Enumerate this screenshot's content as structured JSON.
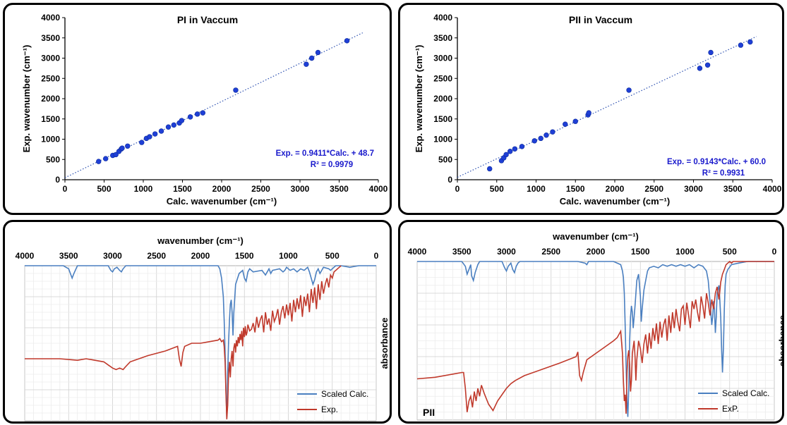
{
  "chart_data": [
    {
      "type": "scatter",
      "title": "PI in Vaccum",
      "xlabel": "Calc. wavenumber (cm⁻¹)",
      "ylabel": "Exp. wavenumber (cm⁻¹)",
      "xlim": [
        0,
        4000
      ],
      "ylim": [
        0,
        4000
      ],
      "xticks": [
        "0",
        "500",
        "1000",
        "1500",
        "2000",
        "2500",
        "3000",
        "3500",
        "4000"
      ],
      "yticks": [
        "0",
        "500",
        "1000",
        "1500",
        "2000",
        "2500",
        "3000",
        "3500",
        "4000"
      ],
      "equation": "Exp. = 0.9411*Calc. + 48.7",
      "r2": "R² = 0.9979",
      "fit": {
        "slope": 0.9411,
        "intercept": 48.7
      },
      "color": "#1f3fd6",
      "points": [
        [
          430,
          450
        ],
        [
          520,
          520
        ],
        [
          610,
          600
        ],
        [
          650,
          620
        ],
        [
          690,
          700
        ],
        [
          720,
          760
        ],
        [
          730,
          780
        ],
        [
          800,
          830
        ],
        [
          980,
          920
        ],
        [
          1040,
          1020
        ],
        [
          1080,
          1060
        ],
        [
          1150,
          1130
        ],
        [
          1230,
          1200
        ],
        [
          1320,
          1300
        ],
        [
          1390,
          1350
        ],
        [
          1460,
          1400
        ],
        [
          1490,
          1460
        ],
        [
          1600,
          1550
        ],
        [
          1690,
          1620
        ],
        [
          1760,
          1650
        ],
        [
          2180,
          2210
        ],
        [
          3080,
          2850
        ],
        [
          3150,
          3000
        ],
        [
          3230,
          3140
        ],
        [
          3600,
          3430
        ]
      ]
    },
    {
      "type": "scatter",
      "title": "PII in Vaccum",
      "xlabel": "Calc. wavenumber (cm⁻¹)",
      "ylabel": "Exp. wavenumber (cm⁻¹)",
      "xlim": [
        0,
        4000
      ],
      "ylim": [
        0,
        4000
      ],
      "xticks": [
        "0",
        "500",
        "1000",
        "1500",
        "2000",
        "2500",
        "3000",
        "3500",
        "4000"
      ],
      "yticks": [
        "0",
        "500",
        "1000",
        "1500",
        "2000",
        "2500",
        "3000",
        "3500",
        "4000"
      ],
      "equation": "Exp. = 0.9143*Calc. + 60.0",
      "r2": "R² = 0.9931",
      "fit": {
        "slope": 0.9143,
        "intercept": 60.0
      },
      "color": "#1f3fd6",
      "points": [
        [
          410,
          270
        ],
        [
          560,
          470
        ],
        [
          590,
          540
        ],
        [
          620,
          620
        ],
        [
          670,
          700
        ],
        [
          730,
          760
        ],
        [
          820,
          820
        ],
        [
          980,
          960
        ],
        [
          1060,
          1020
        ],
        [
          1130,
          1100
        ],
        [
          1210,
          1180
        ],
        [
          1370,
          1370
        ],
        [
          1500,
          1440
        ],
        [
          1660,
          1600
        ],
        [
          1670,
          1650
        ],
        [
          2180,
          2210
        ],
        [
          3080,
          2750
        ],
        [
          3180,
          2830
        ],
        [
          3220,
          3140
        ],
        [
          3600,
          3320
        ],
        [
          3720,
          3400
        ]
      ]
    },
    {
      "type": "line",
      "title": "",
      "xlabel": "wavenumber (cm⁻¹)",
      "ylabel": "absorbance",
      "xlim": [
        4000,
        0
      ],
      "xticks": [
        "4000",
        "3500",
        "3000",
        "2500",
        "2000",
        "1500",
        "1000",
        "500",
        "0"
      ],
      "series": [
        {
          "name": "Scaled Calc.",
          "color": "#4a7fc0",
          "x": [
            4000,
            3560,
            3500,
            3480,
            3460,
            3440,
            3400,
            3050,
            3020,
            3000,
            2980,
            2950,
            2920,
            2900,
            2880,
            2850,
            2200,
            1800,
            1780,
            1760,
            1740,
            1730,
            1720,
            1710,
            1700,
            1695,
            1690,
            1680,
            1670,
            1660,
            1650,
            1640,
            1630,
            1620,
            1600,
            1560,
            1520,
            1500,
            1480,
            1470,
            1460,
            1440,
            1400,
            1300,
            1260,
            1240,
            1220,
            1200,
            1180,
            1100,
            1060,
            1040,
            1020,
            980,
            940,
            900,
            860,
            820,
            780,
            760,
            740,
            720,
            700,
            680,
            660,
            640,
            620,
            600,
            540,
            520,
            500,
            480,
            460,
            400,
            300,
            200,
            100,
            0
          ],
          "y": [
            0.0,
            0.0,
            0.02,
            0.05,
            0.08,
            0.05,
            0.0,
            0.0,
            0.03,
            0.04,
            0.02,
            0.01,
            0.03,
            0.04,
            0.02,
            0.0,
            0.0,
            0.0,
            0.02,
            0.08,
            0.2,
            0.35,
            0.55,
            0.8,
            0.98,
            0.9,
            0.7,
            0.5,
            0.35,
            0.25,
            0.22,
            0.3,
            0.45,
            0.3,
            0.12,
            0.05,
            0.03,
            0.08,
            0.1,
            0.07,
            0.04,
            0.02,
            0.04,
            0.03,
            0.06,
            0.04,
            0.02,
            0.05,
            0.03,
            0.02,
            0.04,
            0.03,
            0.01,
            0.03,
            0.02,
            0.04,
            0.02,
            0.03,
            0.01,
            0.04,
            0.08,
            0.12,
            0.09,
            0.04,
            0.02,
            0.05,
            0.03,
            0.01,
            0.02,
            0.03,
            0.02,
            0.01,
            0.0,
            0.0,
            0.01,
            0.0,
            0.0,
            0.0
          ]
        },
        {
          "name": "Exp.",
          "color": "#c0392b",
          "x": [
            4000,
            3800,
            3600,
            3400,
            3300,
            3200,
            3100,
            3050,
            3000,
            2960,
            2920,
            2880,
            2850,
            2800,
            2600,
            2400,
            2260,
            2240,
            2220,
            2200,
            2180,
            2100,
            2000,
            1900,
            1800,
            1780,
            1760,
            1740,
            1730,
            1720,
            1710,
            1700,
            1690,
            1680,
            1670,
            1660,
            1650,
            1640,
            1630,
            1620,
            1610,
            1600,
            1590,
            1580,
            1570,
            1560,
            1550,
            1540,
            1530,
            1520,
            1510,
            1500,
            1490,
            1480,
            1470,
            1460,
            1440,
            1420,
            1400,
            1380,
            1360,
            1340,
            1320,
            1300,
            1280,
            1260,
            1240,
            1220,
            1200,
            1180,
            1160,
            1140,
            1120,
            1100,
            1080,
            1060,
            1040,
            1020,
            1000,
            980,
            960,
            940,
            920,
            900,
            880,
            860,
            840,
            820,
            800,
            780,
            760,
            740,
            720,
            700,
            680,
            660,
            640,
            620,
            600,
            580,
            560,
            540,
            520,
            500,
            480,
            460,
            440,
            420,
            400
          ],
          "y": [
            0.6,
            0.6,
            0.6,
            0.61,
            0.6,
            0.61,
            0.62,
            0.64,
            0.66,
            0.67,
            0.66,
            0.67,
            0.65,
            0.62,
            0.58,
            0.55,
            0.52,
            0.6,
            0.65,
            0.56,
            0.52,
            0.5,
            0.5,
            0.49,
            0.48,
            0.47,
            0.49,
            0.48,
            0.52,
            0.62,
            0.82,
            0.99,
            0.9,
            0.7,
            0.62,
            0.72,
            0.6,
            0.55,
            0.65,
            0.53,
            0.5,
            0.56,
            0.48,
            0.52,
            0.46,
            0.5,
            0.44,
            0.48,
            0.42,
            0.52,
            0.4,
            0.46,
            0.39,
            0.45,
            0.43,
            0.38,
            0.42,
            0.41,
            0.37,
            0.43,
            0.33,
            0.4,
            0.35,
            0.32,
            0.43,
            0.3,
            0.38,
            0.34,
            0.42,
            0.29,
            0.36,
            0.33,
            0.28,
            0.38,
            0.3,
            0.26,
            0.34,
            0.25,
            0.32,
            0.24,
            0.36,
            0.22,
            0.3,
            0.21,
            0.28,
            0.19,
            0.33,
            0.2,
            0.26,
            0.18,
            0.3,
            0.15,
            0.24,
            0.14,
            0.28,
            0.12,
            0.22,
            0.1,
            0.18,
            0.12,
            0.08,
            0.14,
            0.06,
            0.08,
            0.04,
            0.03,
            0.02,
            0.01,
            0.0
          ]
        }
      ],
      "legend": "bottom-right",
      "grid": true
    },
    {
      "type": "line",
      "title": "",
      "label": "PII",
      "xlim": [
        4000,
        0
      ],
      "ylabel": "absorbance",
      "xlabel": "wavenumber (cm⁻¹)",
      "xticks": [
        "4000",
        "3500",
        "3000",
        "2500",
        "2000",
        "1500",
        "1000",
        "500",
        "0"
      ],
      "series": [
        {
          "name": "Scaled Calc.",
          "color": "#4a7fc0",
          "x": [
            4000,
            3500,
            3460,
            3440,
            3420,
            3400,
            3390,
            3370,
            3350,
            3320,
            3300,
            3050,
            3020,
            3000,
            2980,
            2950,
            2930,
            2910,
            2890,
            2870,
            2850,
            2200,
            2120,
            2100,
            2080,
            1800,
            1720,
            1700,
            1690,
            1680,
            1670,
            1660,
            1650,
            1640,
            1630,
            1620,
            1610,
            1600,
            1590,
            1580,
            1560,
            1540,
            1520,
            1500,
            1490,
            1480,
            1460,
            1440,
            1420,
            1400,
            1350,
            1300,
            1250,
            1200,
            1150,
            1100,
            1050,
            1000,
            950,
            900,
            850,
            800,
            760,
            740,
            720,
            700,
            690,
            680,
            670,
            660,
            650,
            640,
            620,
            600,
            590,
            580,
            570,
            560,
            550,
            540,
            520,
            480,
            400,
            300,
            200,
            100,
            0
          ],
          "y": [
            0.0,
            0.0,
            0.03,
            0.08,
            0.05,
            0.02,
            0.09,
            0.12,
            0.07,
            0.02,
            0.0,
            0.0,
            0.04,
            0.06,
            0.03,
            0.01,
            0.05,
            0.07,
            0.03,
            0.01,
            0.0,
            0.0,
            0.01,
            0.02,
            0.0,
            0.0,
            0.02,
            0.06,
            0.1,
            0.2,
            0.4,
            0.65,
            0.88,
            0.98,
            0.8,
            0.5,
            0.35,
            0.28,
            0.32,
            0.42,
            0.28,
            0.12,
            0.08,
            0.22,
            0.38,
            0.3,
            0.18,
            0.12,
            0.06,
            0.04,
            0.03,
            0.04,
            0.02,
            0.03,
            0.02,
            0.03,
            0.02,
            0.03,
            0.02,
            0.04,
            0.02,
            0.03,
            0.06,
            0.12,
            0.25,
            0.4,
            0.35,
            0.25,
            0.3,
            0.45,
            0.35,
            0.2,
            0.15,
            0.35,
            0.55,
            0.7,
            0.55,
            0.3,
            0.15,
            0.08,
            0.05,
            0.02,
            0.01,
            0.0,
            0.0,
            0.0,
            0.0
          ]
        },
        {
          "name": "ExP.",
          "color": "#c0392b",
          "x": [
            4000,
            3800,
            3600,
            3500,
            3480,
            3460,
            3440,
            3420,
            3400,
            3380,
            3360,
            3340,
            3320,
            3300,
            3280,
            3250,
            3200,
            3150,
            3100,
            3050,
            3000,
            2950,
            2900,
            2800,
            2600,
            2400,
            2220,
            2200,
            2180,
            2160,
            2140,
            2100,
            2000,
            1900,
            1800,
            1760,
            1740,
            1720,
            1700,
            1690,
            1680,
            1670,
            1660,
            1650,
            1640,
            1630,
            1620,
            1610,
            1600,
            1590,
            1580,
            1570,
            1560,
            1550,
            1540,
            1520,
            1500,
            1480,
            1460,
            1440,
            1420,
            1400,
            1380,
            1360,
            1340,
            1320,
            1300,
            1280,
            1260,
            1240,
            1220,
            1200,
            1180,
            1160,
            1140,
            1120,
            1100,
            1080,
            1060,
            1040,
            1020,
            1000,
            980,
            960,
            940,
            920,
            900,
            880,
            860,
            840,
            820,
            800,
            780,
            760,
            740,
            720,
            700,
            680,
            660,
            640,
            620,
            600,
            580,
            560,
            540,
            520,
            500,
            480,
            460,
            440,
            400,
            300,
            200,
            100,
            0
          ],
          "y": [
            0.74,
            0.73,
            0.71,
            0.7,
            0.7,
            0.8,
            0.95,
            0.88,
            0.85,
            0.92,
            0.82,
            0.88,
            0.8,
            0.85,
            0.78,
            0.83,
            0.9,
            0.94,
            0.88,
            0.84,
            0.8,
            0.77,
            0.75,
            0.72,
            0.68,
            0.64,
            0.6,
            0.57,
            0.72,
            0.75,
            0.7,
            0.62,
            0.58,
            0.54,
            0.5,
            0.48,
            0.46,
            0.44,
            0.58,
            0.75,
            0.88,
            0.84,
            0.96,
            0.7,
            0.6,
            0.56,
            0.65,
            0.82,
            0.75,
            0.58,
            0.54,
            0.5,
            0.6,
            0.75,
            0.62,
            0.5,
            0.55,
            0.64,
            0.52,
            0.46,
            0.58,
            0.45,
            0.55,
            0.42,
            0.5,
            0.39,
            0.52,
            0.38,
            0.48,
            0.4,
            0.36,
            0.5,
            0.34,
            0.45,
            0.32,
            0.42,
            0.3,
            0.38,
            0.44,
            0.3,
            0.28,
            0.4,
            0.26,
            0.34,
            0.42,
            0.25,
            0.3,
            0.24,
            0.32,
            0.38,
            0.22,
            0.28,
            0.36,
            0.2,
            0.26,
            0.34,
            0.24,
            0.3,
            0.2,
            0.16,
            0.24,
            0.13,
            0.08,
            0.05,
            0.02,
            0.01,
            0.0,
            0.01,
            0.0,
            0.0,
            0.0,
            0.0,
            0.0,
            0.0,
            0.0
          ]
        }
      ],
      "legend": "bottom-right",
      "grid": true
    }
  ]
}
